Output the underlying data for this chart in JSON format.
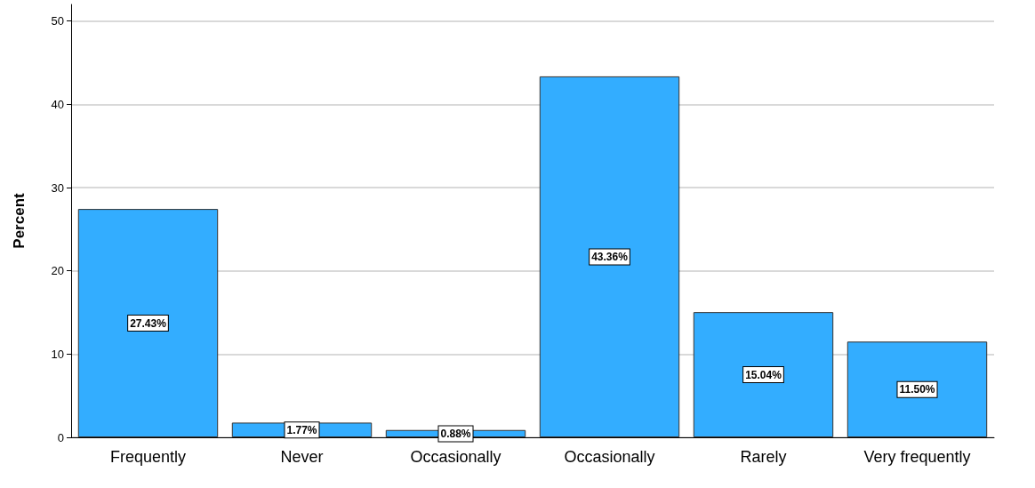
{
  "chart_data": {
    "type": "bar",
    "ylabel": "Percent",
    "categories": [
      "Frequently",
      "Never",
      "Occasionally",
      "Occasionally",
      "Rarely",
      "Very frequently"
    ],
    "values": [
      27.43,
      1.77,
      0.88,
      43.36,
      15.04,
      11.5
    ],
    "value_labels": [
      "27.43%",
      "1.77%",
      "0.88%",
      "43.36%",
      "15.04%",
      "11.50%"
    ],
    "color": "#33adff",
    "ylim": [
      0,
      52
    ],
    "yticks": [
      0,
      10,
      20,
      30,
      40,
      50
    ],
    "grid": "y"
  }
}
